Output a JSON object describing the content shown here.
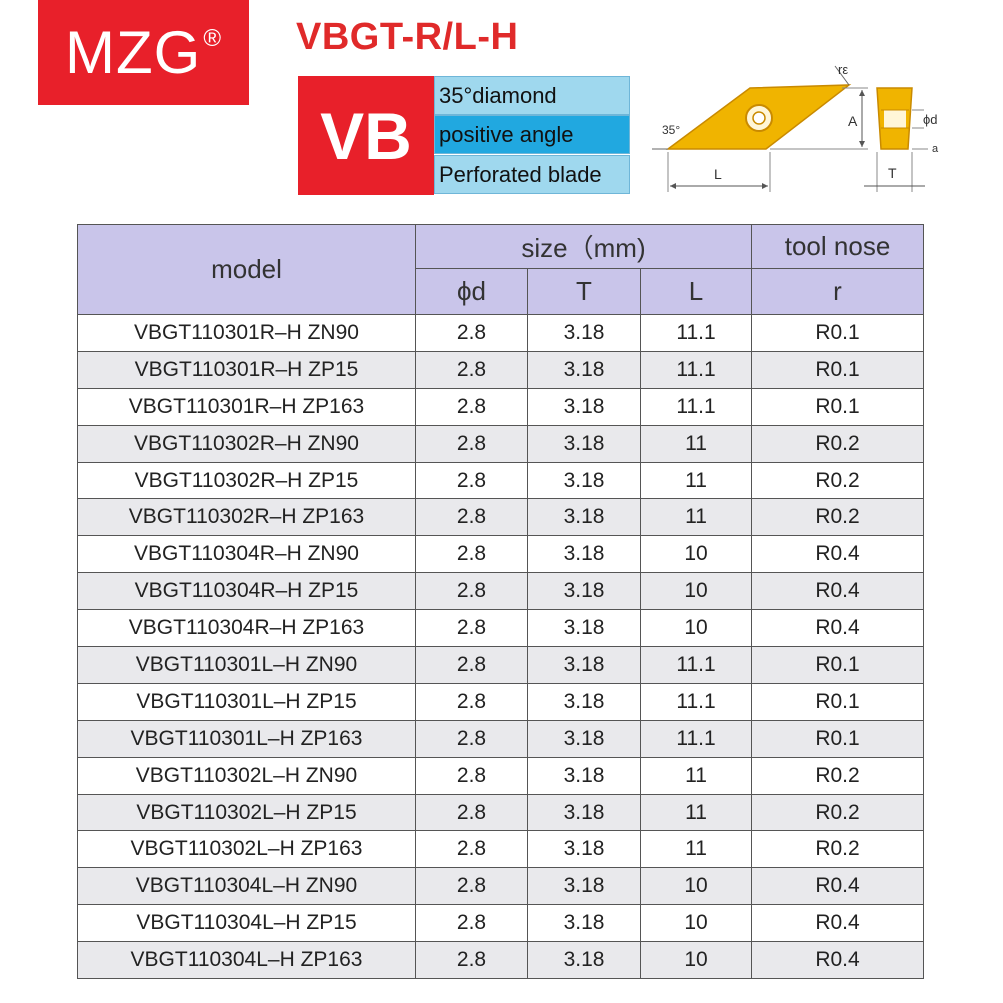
{
  "brand": {
    "name": "MZG",
    "mark": "®",
    "color": "#e8202a"
  },
  "title": "VBGT-R/L-H",
  "code": "VB",
  "features": [
    "35°diamond",
    "positive angle",
    "Perforated blade"
  ],
  "diagram_labels": {
    "angle": "35°",
    "radius": "rε",
    "length": "L",
    "height": "A",
    "thickness": "T",
    "hole": "ϕd",
    "clearance": "a"
  },
  "table": {
    "headers": {
      "model": "model",
      "size": "size（mm)",
      "nose": "tool nose",
      "d": "ϕd",
      "t": "T",
      "l": "L",
      "r": "r"
    },
    "rows": [
      [
        "VBGT110301R–H ZN90",
        "2.8",
        "3.18",
        "11.1",
        "R0.1"
      ],
      [
        "VBGT110301R–H ZP15",
        "2.8",
        "3.18",
        "11.1",
        "R0.1"
      ],
      [
        "VBGT110301R–H ZP163",
        "2.8",
        "3.18",
        "11.1",
        "R0.1"
      ],
      [
        "VBGT110302R–H ZN90",
        "2.8",
        "3.18",
        "11",
        "R0.2"
      ],
      [
        "VBGT110302R–H ZP15",
        "2.8",
        "3.18",
        "11",
        "R0.2"
      ],
      [
        "VBGT110302R–H ZP163",
        "2.8",
        "3.18",
        "11",
        "R0.2"
      ],
      [
        "VBGT110304R–H ZN90",
        "2.8",
        "3.18",
        "10",
        "R0.4"
      ],
      [
        "VBGT110304R–H ZP15",
        "2.8",
        "3.18",
        "10",
        "R0.4"
      ],
      [
        "VBGT110304R–H ZP163",
        "2.8",
        "3.18",
        "10",
        "R0.4"
      ],
      [
        "VBGT110301L–H ZN90",
        "2.8",
        "3.18",
        "11.1",
        "R0.1"
      ],
      [
        "VBGT110301L–H ZP15",
        "2.8",
        "3.18",
        "11.1",
        "R0.1"
      ],
      [
        "VBGT110301L–H ZP163",
        "2.8",
        "3.18",
        "11.1",
        "R0.1"
      ],
      [
        "VBGT110302L–H ZN90",
        "2.8",
        "3.18",
        "11",
        "R0.2"
      ],
      [
        "VBGT110302L–H ZP15",
        "2.8",
        "3.18",
        "11",
        "R0.2"
      ],
      [
        "VBGT110302L–H ZP163",
        "2.8",
        "3.18",
        "11",
        "R0.2"
      ],
      [
        "VBGT110304L–H ZN90",
        "2.8",
        "3.18",
        "10",
        "R0.4"
      ],
      [
        "VBGT110304L–H ZP15",
        "2.8",
        "3.18",
        "10",
        "R0.4"
      ],
      [
        "VBGT110304L–H ZP163",
        "2.8",
        "3.18",
        "10",
        "R0.4"
      ]
    ]
  }
}
